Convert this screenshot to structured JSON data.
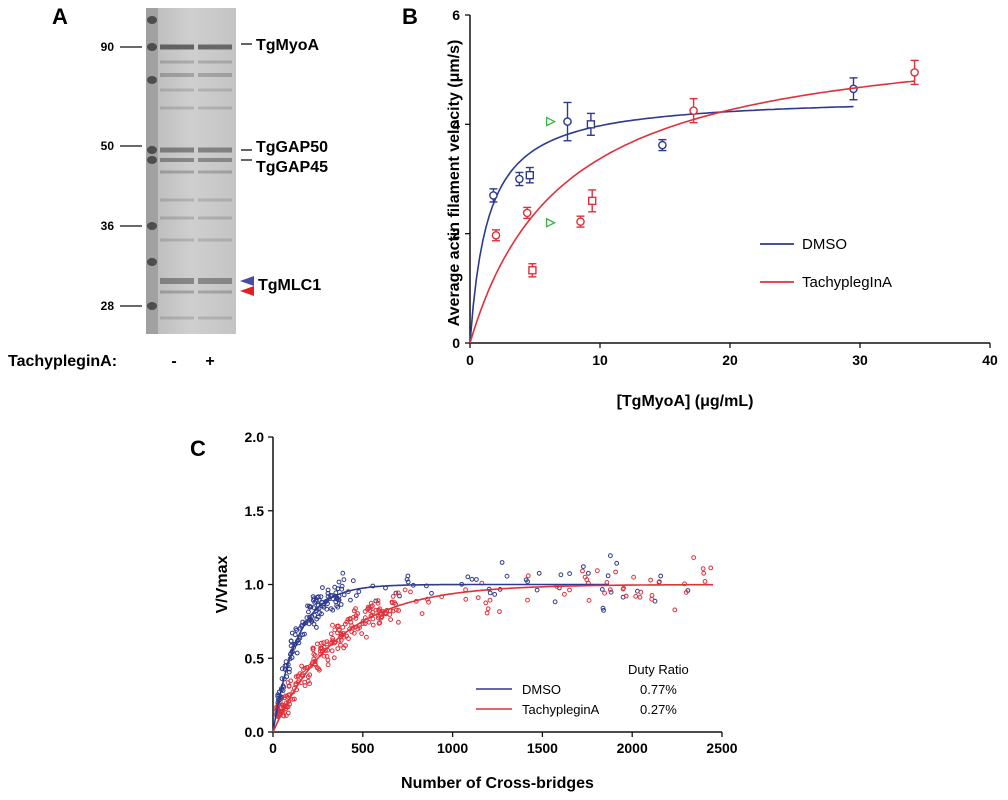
{
  "panel_a": {
    "letter": "A",
    "mw_markers": [
      "90",
      "50",
      "36",
      "28"
    ],
    "band_labels": [
      "TgMyoA",
      "TgGAP50",
      "TgGAP45",
      "TgMLC1"
    ],
    "treatment_label": "TachypleginA:",
    "lane_labels": [
      "-",
      "+"
    ],
    "arrow_colors": {
      "dmso": "#4a4aa8",
      "tachyplegin": "#e02020"
    }
  },
  "panel_b": {
    "letter": "B"
  },
  "panel_c": {
    "letter": "C",
    "duty_header": "Duty Ratio"
  },
  "chart_data": [
    {
      "id": "B",
      "type": "scatter",
      "title": "",
      "xlabel": "[TgMyoA] (μg/mL)",
      "ylabel": "Average actin filament velocity (μm/s)",
      "xlim": [
        0,
        40
      ],
      "ylim": [
        0,
        6
      ],
      "xticks": [
        "0",
        "10",
        "20",
        "30",
        "40"
      ],
      "yticks": [
        "0",
        "2",
        "4",
        "6"
      ],
      "legend_position": "center-right",
      "series": [
        {
          "name": "DMSO",
          "color": "#2e3a8c",
          "points": [
            {
              "x": 1.8,
              "y": 2.7,
              "err": 0.12,
              "marker": "circle"
            },
            {
              "x": 3.8,
              "y": 3.0,
              "err": 0.12,
              "marker": "circle"
            },
            {
              "x": 4.6,
              "y": 3.07,
              "err": 0.14,
              "marker": "square"
            },
            {
              "x": 7.5,
              "y": 4.05,
              "err": 0.35,
              "marker": "circle"
            },
            {
              "x": 9.3,
              "y": 4.0,
              "err": 0.2,
              "marker": "square"
            },
            {
              "x": 14.8,
              "y": 3.62,
              "err": 0.1,
              "marker": "circle"
            },
            {
              "x": 29.5,
              "y": 4.65,
              "err": 0.2,
              "marker": "circle"
            }
          ],
          "fit": {
            "vmax": 4.53,
            "k": 1.4,
            "x_max": 29.5
          }
        },
        {
          "name": "TachyplegInA",
          "color": "#e0303a",
          "points": [
            {
              "x": 2.0,
              "y": 1.97,
              "err": 0.1,
              "marker": "circle"
            },
            {
              "x": 4.4,
              "y": 2.38,
              "err": 0.1,
              "marker": "circle"
            },
            {
              "x": 4.8,
              "y": 1.33,
              "err": 0.12,
              "marker": "square"
            },
            {
              "x": 8.5,
              "y": 2.22,
              "err": 0.1,
              "marker": "circle"
            },
            {
              "x": 9.4,
              "y": 2.6,
              "err": 0.2,
              "marker": "square"
            },
            {
              "x": 17.2,
              "y": 4.25,
              "err": 0.22,
              "marker": "circle"
            },
            {
              "x": 34.2,
              "y": 4.95,
              "err": 0.22,
              "marker": "circle"
            }
          ],
          "fit": {
            "vmax": 5.8,
            "k": 7.2,
            "x_max": 34.2
          }
        }
      ],
      "annotations": [
        {
          "type": "triangle",
          "x": 6.2,
          "y": 4.05,
          "color": "#3cb043"
        },
        {
          "type": "triangle",
          "x": 6.2,
          "y": 2.2,
          "color": "#3cb043"
        }
      ]
    },
    {
      "id": "C",
      "type": "scatter",
      "title": "",
      "xlabel": "Number of Cross-bridges",
      "ylabel": "V/Vmax",
      "xlim": [
        0,
        2500
      ],
      "ylim": [
        0,
        2.0
      ],
      "xticks": [
        "0",
        "500",
        "1000",
        "1500",
        "2000",
        "2500"
      ],
      "yticks": [
        "0.0",
        "0.5",
        "1.0",
        "1.5",
        "2.0"
      ],
      "legend_position": "bottom-right",
      "series": [
        {
          "name": "DMSO",
          "duty_ratio": "0.77%",
          "color": "#2e3a8c",
          "fit_tau": 135,
          "fit_x_max": 1870,
          "scatter_summary": {
            "n": 190,
            "x_range": [
              20,
              2400
            ],
            "dense_x_max": 400
          }
        },
        {
          "name": "TachypleginA",
          "duty_ratio": "0.27%",
          "color": "#e0303a",
          "fit_tau": 360,
          "fit_x_max": 2450,
          "scatter_summary": {
            "n": 260,
            "x_range": [
              20,
              2450
            ],
            "dense_x_max": 700
          }
        }
      ]
    }
  ]
}
